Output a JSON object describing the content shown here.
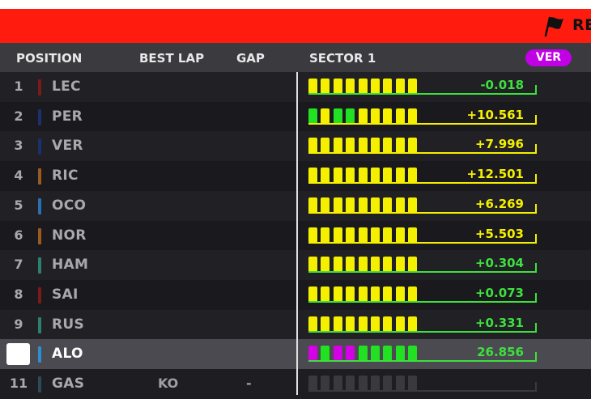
{
  "banner": {
    "text": "RE",
    "color": "#ff1c0f"
  },
  "header": {
    "position": "POSITION",
    "best_lap": "BEST LAP",
    "gap": "GAP",
    "sector": "SECTOR 1",
    "badge": "VER"
  },
  "colors": {
    "yellow": "#f5f000",
    "green": "#22e022",
    "purple": "#d600e6",
    "grey": "#3a3a3e"
  },
  "rows": [
    {
      "pos": "1",
      "driver": "LEC",
      "team_color": "#7a1a1a",
      "time": "-0.018",
      "time_color": "#3ee03e",
      "line_color": "#3ee03e",
      "segments": [
        "y",
        "y",
        "y",
        "y",
        "y",
        "y",
        "y",
        "y",
        "y"
      ]
    },
    {
      "pos": "2",
      "driver": "PER",
      "team_color": "#1c2f6e",
      "time": "+10.561",
      "time_color": "#f5f000",
      "line_color": "#f5f000",
      "segments": [
        "g",
        "y",
        "g",
        "g",
        "y",
        "y",
        "y",
        "y",
        "y"
      ]
    },
    {
      "pos": "3",
      "driver": "VER",
      "team_color": "#1c2f6e",
      "time": "+7.996",
      "time_color": "#f5f000",
      "line_color": "#f5f000",
      "segments": [
        "y",
        "y",
        "y",
        "y",
        "y",
        "y",
        "y",
        "y",
        "y"
      ]
    },
    {
      "pos": "4",
      "driver": "RIC",
      "team_color": "#9a5a20",
      "time": "+12.501",
      "time_color": "#f5f000",
      "line_color": "#f5f000",
      "segments": [
        "y",
        "y",
        "y",
        "y",
        "y",
        "y",
        "y",
        "y",
        "y"
      ]
    },
    {
      "pos": "5",
      "driver": "OCO",
      "team_color": "#2a6fb0",
      "time": "+6.269",
      "time_color": "#f5f000",
      "line_color": "#f5f000",
      "segments": [
        "y",
        "y",
        "y",
        "y",
        "y",
        "y",
        "y",
        "y",
        "y"
      ]
    },
    {
      "pos": "6",
      "driver": "NOR",
      "team_color": "#9a5a20",
      "time": "+5.503",
      "time_color": "#f5f000",
      "line_color": "#f5f000",
      "segments": [
        "y",
        "y",
        "y",
        "y",
        "y",
        "y",
        "y",
        "y",
        "y"
      ]
    },
    {
      "pos": "7",
      "driver": "HAM",
      "team_color": "#2d8070",
      "time": "+0.304",
      "time_color": "#3ee03e",
      "line_color": "#3ee03e",
      "segments": [
        "y",
        "y",
        "y",
        "y",
        "y",
        "y",
        "y",
        "y",
        "y"
      ]
    },
    {
      "pos": "8",
      "driver": "SAI",
      "team_color": "#7a1a1a",
      "time": "+0.073",
      "time_color": "#3ee03e",
      "line_color": "#3ee03e",
      "segments": [
        "y",
        "y",
        "y",
        "y",
        "y",
        "y",
        "y",
        "y",
        "y"
      ]
    },
    {
      "pos": "9",
      "driver": "RUS",
      "team_color": "#2d8070",
      "time": "+0.331",
      "time_color": "#3ee03e",
      "line_color": "#3ee03e",
      "segments": [
        "y",
        "y",
        "y",
        "y",
        "y",
        "y",
        "y",
        "y",
        "y"
      ]
    },
    {
      "pos": "",
      "driver": "ALO",
      "team_color": "#2e8fd0",
      "time": "26.856",
      "time_color": "#3ee03e",
      "line_color": "#3ee03e",
      "segments": [
        "p",
        "g",
        "p",
        "p",
        "g",
        "g",
        "g",
        "g",
        "g"
      ],
      "selected": true
    },
    {
      "pos": "11",
      "driver": "GAS",
      "team_color": "#2c4a5a",
      "best_lap": "KO",
      "gap": "-",
      "time": "",
      "time_color": "#3a3a3e",
      "line_color": "#3a3a3e",
      "segments": [
        "n",
        "n",
        "n",
        "n",
        "n",
        "n",
        "n",
        "n",
        "n"
      ],
      "dim": true
    }
  ]
}
